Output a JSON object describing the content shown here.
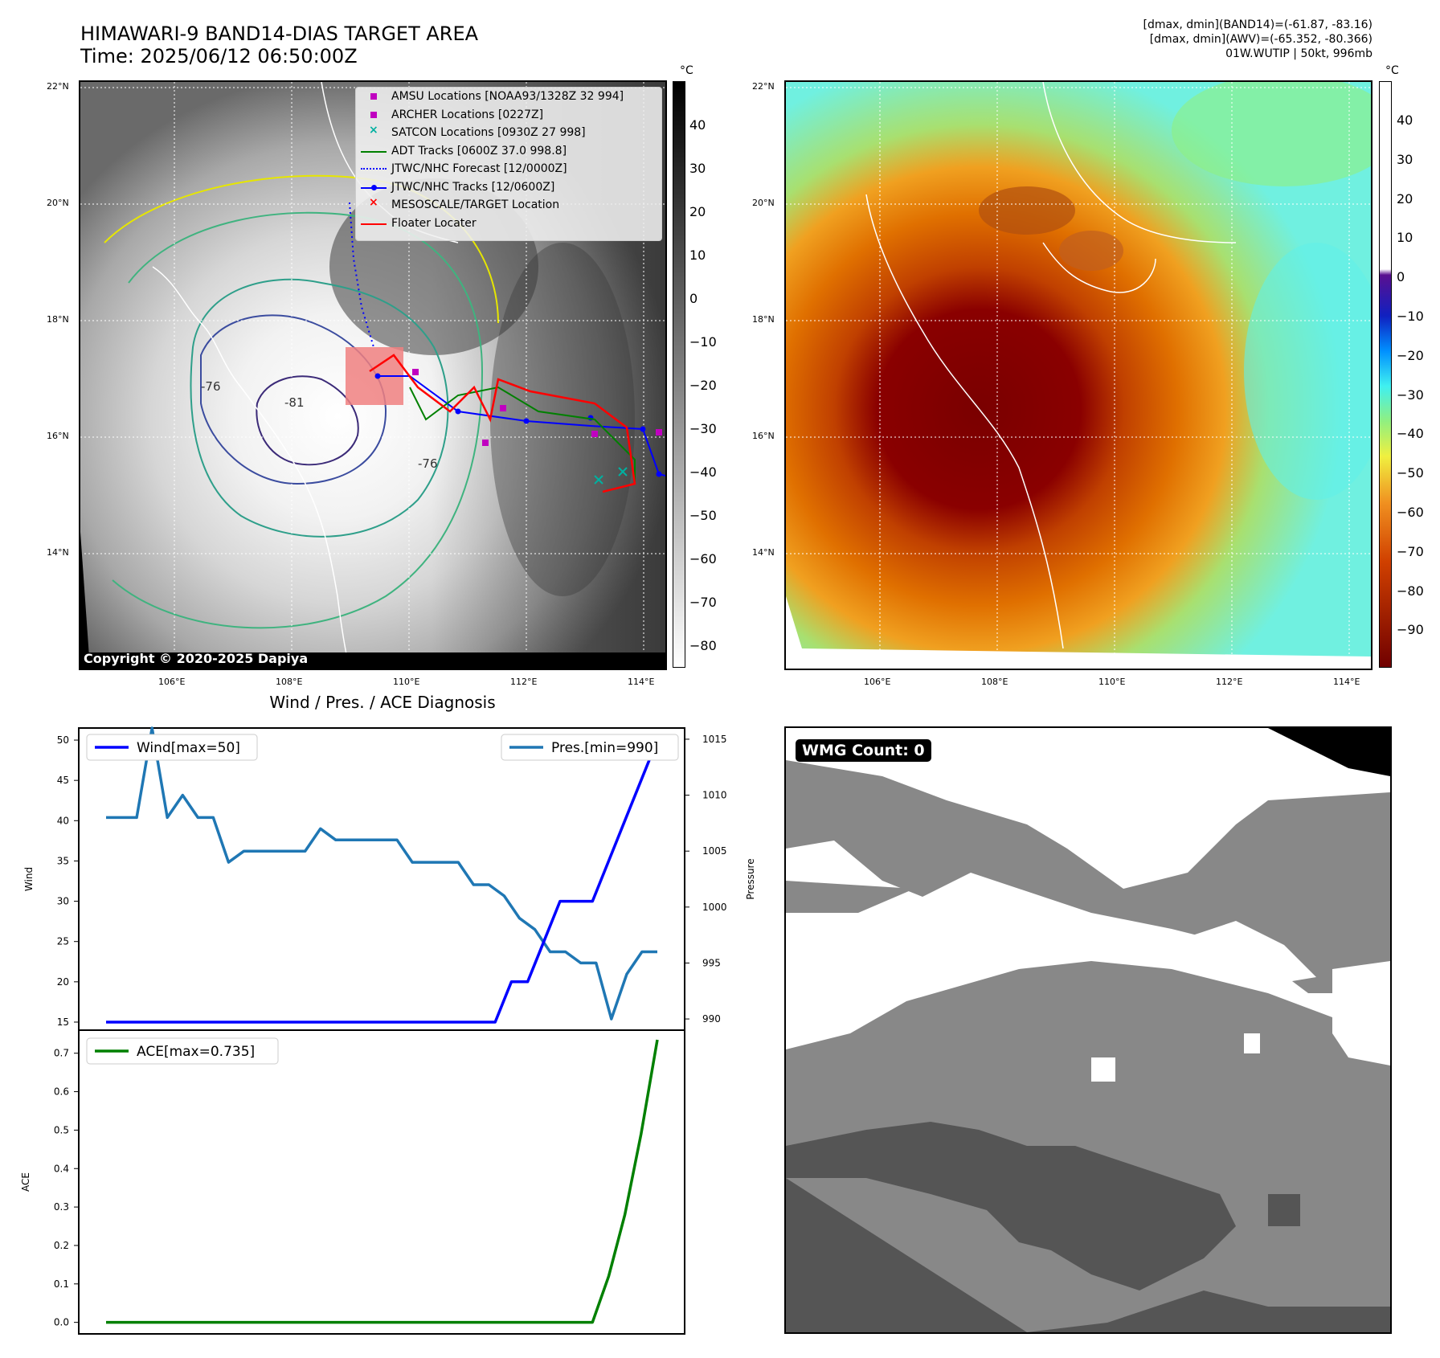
{
  "header": {
    "title_line1": "HIMAWARI-9 BAND14-DIAS TARGET AREA",
    "title_line2": "Time: 2025/06/12 06:50:00Z",
    "right_line1": "[dmax, dmin](BAND14)=(-61.87, -83.16)",
    "right_line2": "[dmax, dmin](AWV)=(-65.352, -80.366)",
    "right_line3": "01W.WUTIP | 50kt, 996mb"
  },
  "map": {
    "lat_labels": [
      "22°N",
      "20°N",
      "18°N",
      "16°N",
      "14°N"
    ],
    "lon_labels": [
      "106°E",
      "108°E",
      "110°E",
      "112°E",
      "114°E"
    ],
    "copyright": "Copyright © 2020-2025 Dapiya",
    "contour_labels": [
      "-81",
      "-76",
      "-76"
    ],
    "unit": "°C"
  },
  "legend": [
    {
      "label": "AMSU Locations [NOAA93/1328Z 32 994]",
      "marker": "square",
      "color": "#c000c0"
    },
    {
      "label": "ARCHER Locations [0227Z]",
      "marker": "square",
      "color": "#c000c0"
    },
    {
      "label": "SATCON Locations [0930Z 27 998]",
      "marker": "x",
      "color": "#00b0a0"
    },
    {
      "label": "ADT Tracks [0600Z 37.0 998.8]",
      "marker": "line",
      "color": "#008000"
    },
    {
      "label": "JTWC/NHC Forecast [12/0000Z]",
      "marker": "dotted",
      "color": "#0000ff"
    },
    {
      "label": "JTWC/NHC Tracks [12/0600Z]",
      "marker": "line-dot",
      "color": "#0000ff"
    },
    {
      "label": "MESOSCALE/TARGET Location",
      "marker": "x",
      "color": "#ff0000"
    },
    {
      "label": "Floater Locater",
      "marker": "line",
      "color": "#ff0000"
    }
  ],
  "colorbar_gray": {
    "unit": "°C",
    "ticks": [
      "40",
      "30",
      "20",
      "10",
      "0",
      "−10",
      "−20",
      "−30",
      "−40",
      "−50",
      "−60",
      "−70",
      "−80"
    ]
  },
  "colorbar_awv": {
    "unit": "°C",
    "ticks": [
      "40",
      "30",
      "20",
      "10",
      "0",
      "−10",
      "−20",
      "−30",
      "−40",
      "−50",
      "−60",
      "−70",
      "−80",
      "−90"
    ]
  },
  "diag": {
    "title": "Wind / Pres. / ACE Diagnosis",
    "wind_ylabel": "Wind",
    "pres_ylabel": "Pressure",
    "ace_ylabel": "ACE",
    "wind_legend": "Wind[max=50]",
    "pres_legend": "Pres.[min=990]",
    "ace_legend": "ACE[max=0.735]",
    "wind_color": "#0000ff",
    "pres_color": "#1f77b4",
    "ace_color": "#008000"
  },
  "wmg": {
    "badge": "WMG Count: 0"
  },
  "chart_data": [
    {
      "type": "line",
      "title": "Wind / Pres. / ACE Diagnosis",
      "ylabel": "Wind",
      "ylim": [
        14,
        51.5
      ],
      "yticks": [
        15,
        20,
        25,
        30,
        35,
        40,
        45,
        50
      ],
      "series": [
        {
          "name": "Wind[max=50]",
          "values": [
            15,
            15,
            15,
            15,
            15,
            15,
            15,
            15,
            15,
            15,
            15,
            15,
            15,
            15,
            15,
            15,
            15,
            15,
            15,
            15,
            15,
            15,
            15,
            15,
            15,
            20,
            20,
            25,
            30,
            30,
            30,
            35,
            40,
            45,
            50
          ]
        }
      ]
    },
    {
      "type": "line",
      "ylabel": "Pressure",
      "ylim": [
        989,
        1016
      ],
      "yticks": [
        990,
        995,
        1000,
        1005,
        1010,
        1015
      ],
      "series": [
        {
          "name": "Pres.[min=990]",
          "values": [
            1008,
            1008,
            1008,
            1016,
            1008,
            1010,
            1008,
            1008,
            1004,
            1005,
            1005,
            1005,
            1005,
            1005,
            1007,
            1006,
            1006,
            1006,
            1006,
            1006,
            1004,
            1004,
            1004,
            1004,
            1002,
            1002,
            1001,
            999,
            998,
            996,
            996,
            995,
            995,
            990,
            994,
            996,
            996
          ]
        }
      ]
    },
    {
      "type": "line",
      "ylabel": "ACE",
      "ylim": [
        -0.03,
        0.76
      ],
      "yticks": [
        0.0,
        0.1,
        0.2,
        0.3,
        0.4,
        0.5,
        0.6,
        0.7
      ],
      "series": [
        {
          "name": "ACE[max=0.735]",
          "values": [
            0,
            0,
            0,
            0,
            0,
            0,
            0,
            0,
            0,
            0,
            0,
            0,
            0,
            0,
            0,
            0,
            0,
            0,
            0,
            0,
            0,
            0,
            0,
            0,
            0,
            0,
            0,
            0,
            0,
            0,
            0,
            0.12,
            0.28,
            0.49,
            0.735
          ]
        }
      ]
    }
  ]
}
